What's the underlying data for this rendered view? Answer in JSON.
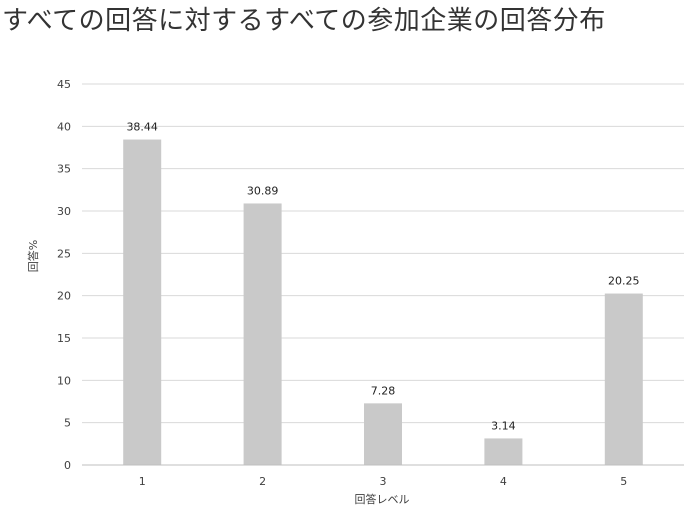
{
  "chart_data": {
    "type": "bar",
    "title": "すべての回答に対するすべての参加企業の回答分布",
    "xlabel": "回答レベル",
    "ylabel": "回答%",
    "categories": [
      "1",
      "2",
      "3",
      "4",
      "5"
    ],
    "series": [
      {
        "values": [
          38.44,
          30.89,
          7.28,
          3.14,
          20.25
        ],
        "color": "#c9c9c9"
      }
    ],
    "data_labels": [
      "38.44",
      "30.89",
      "7.28",
      "3.14",
      "20.25"
    ],
    "ylim": [
      0,
      45
    ],
    "yticks": [
      0,
      5,
      10,
      15,
      20,
      25,
      30,
      35,
      40,
      45
    ],
    "grid": true,
    "legend": "none",
    "colors": {
      "bar": "#c9c9c9",
      "grid": "#d9d9d9",
      "axis": "#bfbfbf",
      "text": "#404040"
    }
  }
}
